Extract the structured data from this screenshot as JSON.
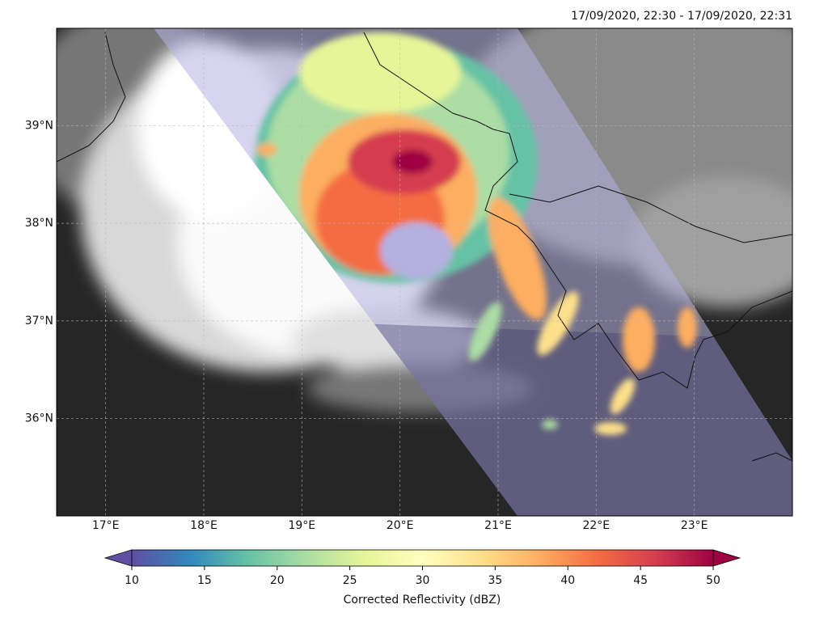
{
  "header": {
    "timestamp": "17/09/2020, 22:30 - 17/09/2020, 22:31"
  },
  "map": {
    "lonlim": [
      16.5,
      24
    ],
    "latlim": [
      35,
      40
    ],
    "lon_ticks": [
      {
        "value": 17,
        "label": "17°E"
      },
      {
        "value": 18,
        "label": "18°E"
      },
      {
        "value": 19,
        "label": "19°E"
      },
      {
        "value": 20,
        "label": "20°E"
      },
      {
        "value": 21,
        "label": "21°E"
      },
      {
        "value": 22,
        "label": "22°E"
      },
      {
        "value": 23,
        "label": "23°E"
      }
    ],
    "lat_ticks": [
      {
        "value": 36,
        "label": "36°N"
      },
      {
        "value": 37,
        "label": "37°N"
      },
      {
        "value": 38,
        "label": "38°N"
      },
      {
        "value": 39,
        "label": "39°N"
      }
    ]
  },
  "colorbar": {
    "label": "Corrected Reflectivity (dBZ)",
    "lim": [
      10,
      50
    ],
    "ticks": [
      10,
      15,
      20,
      25,
      30,
      35,
      40,
      45,
      50
    ],
    "colors": [
      "#5e4fa2",
      "#3288bd",
      "#66c2a5",
      "#abdda4",
      "#e6f598",
      "#ffffbf",
      "#fee08b",
      "#fdae61",
      "#f46d43",
      "#d53e4f",
      "#9e0142"
    ]
  }
}
